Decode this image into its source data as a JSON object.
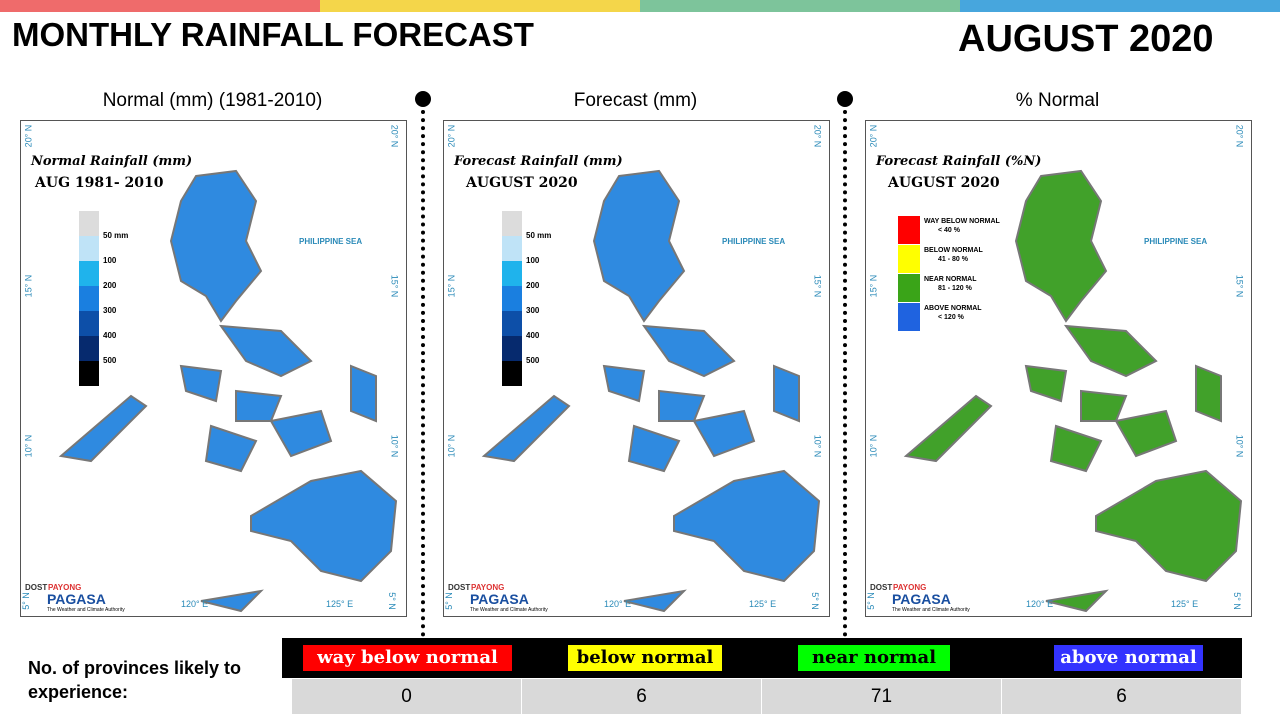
{
  "header": {
    "title": "MONTHLY RAINFALL FORECAST",
    "period": "AUGUST 2020"
  },
  "panels": [
    {
      "caption": "Normal (mm) (1981-2010)",
      "map_title": "Normal Rainfall (mm)",
      "map_subtitle": "AUG 1981- 2010",
      "legend": [
        {
          "label": "50 mm"
        },
        {
          "label": "100"
        },
        {
          "label": "200"
        },
        {
          "label": "300"
        },
        {
          "label": "400"
        },
        {
          "label": "500"
        }
      ]
    },
    {
      "caption": "Forecast (mm)",
      "map_title": "Forecast Rainfall (mm)",
      "map_subtitle": "AUGUST 2020",
      "legend": [
        {
          "label": "50 mm"
        },
        {
          "label": "100"
        },
        {
          "label": "200"
        },
        {
          "label": "300"
        },
        {
          "label": "400"
        },
        {
          "label": "500"
        }
      ]
    },
    {
      "caption": "% Normal",
      "map_title": "Forecast Rainfall (%N)",
      "map_subtitle": "AUGUST 2020",
      "legend": [
        {
          "label": "WAY BELOW NORMAL",
          "range": "< 40 %"
        },
        {
          "label": "BELOW NORMAL",
          "range": "41 - 80 %"
        },
        {
          "label": "NEAR NORMAL",
          "range": "81 - 120 %"
        },
        {
          "label": "ABOVE NORMAL",
          "range": "< 120 %"
        }
      ]
    }
  ],
  "map_labels": {
    "sea": "PHILIPPINE SEA",
    "lat": [
      "20° N",
      "15° N",
      "10° N",
      "5° N"
    ],
    "lon": [
      "120° E",
      "125° E"
    ],
    "agency": "DOST",
    "brand_top": "PAYONG",
    "brand": "PAGASA",
    "tagline": "The Weather and Climate Authority"
  },
  "table": {
    "row_label": "No. of provinces likely to experience:",
    "headers": [
      "way below normal",
      "below normal",
      "near normal",
      "above normal"
    ],
    "values": [
      0,
      6,
      71,
      6
    ]
  }
}
